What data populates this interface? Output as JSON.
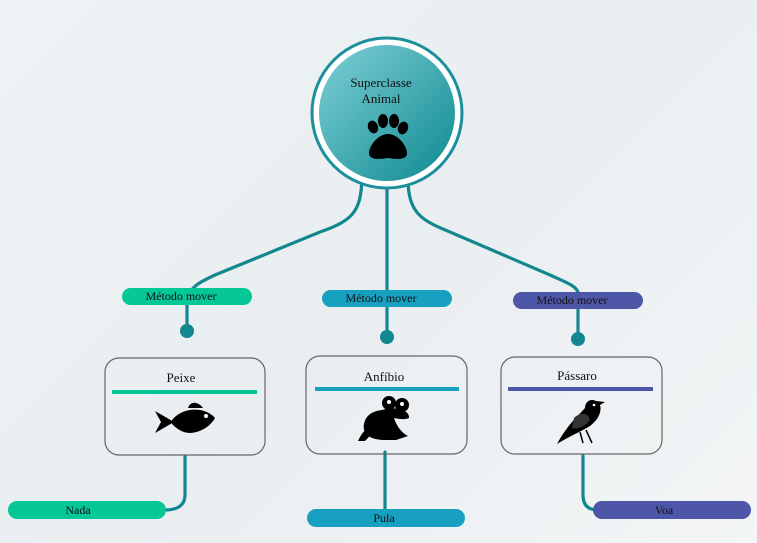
{
  "root": {
    "line1": "Superclasse",
    "line2": "Animal",
    "icon": "paw-icon",
    "colors": {
      "ring": "#1b8f9c",
      "fill_light": "#6dc3cb",
      "fill_dark": "#13898f"
    }
  },
  "branches": [
    {
      "method_label": "Método mover",
      "class_name": "Peixe",
      "icon": "fish-icon",
      "action": "Nada",
      "color": "#05c896"
    },
    {
      "method_label": "Método mover",
      "class_name": "Anfíbio",
      "icon": "frog-icon",
      "action": "Pula",
      "color": "#18a0c0"
    },
    {
      "method_label": "Método mover",
      "class_name": "Pássaro",
      "icon": "bird-icon",
      "action": "Voa",
      "color": "#4e56a8"
    }
  ],
  "connector_color": "#13878f"
}
